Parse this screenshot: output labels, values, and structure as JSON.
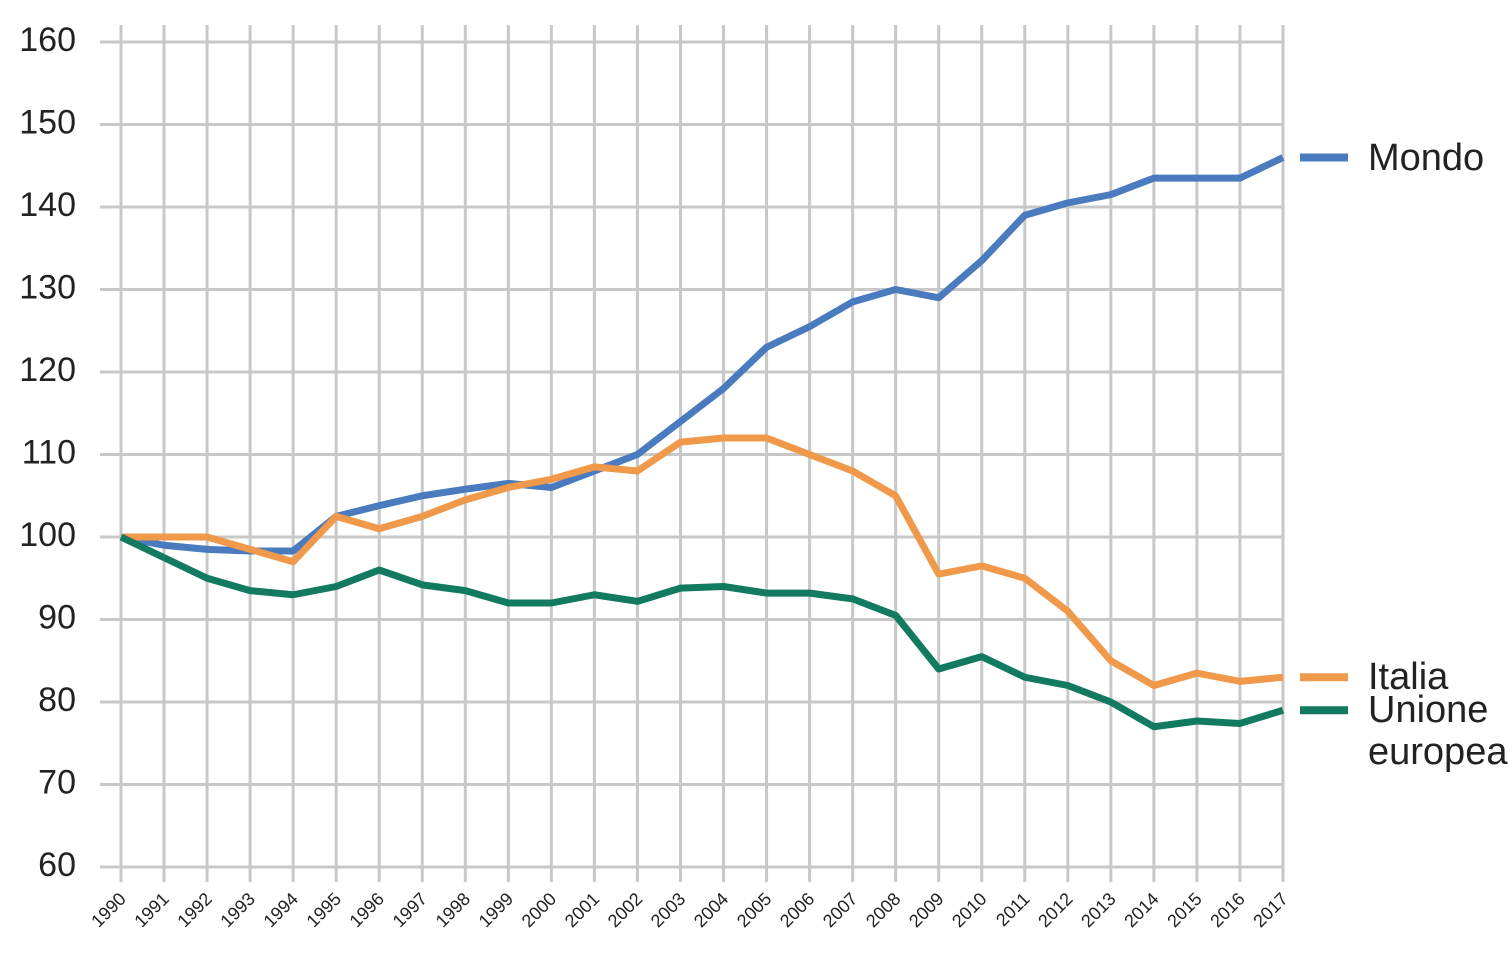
{
  "chart_data": {
    "type": "line",
    "categories": [
      "1990",
      "1991",
      "1992",
      "1993",
      "1994",
      "1995",
      "1996",
      "1997",
      "1998",
      "1999",
      "2000",
      "2001",
      "2002",
      "2003",
      "2004",
      "2005",
      "2006",
      "2007",
      "2008",
      "2009",
      "2010",
      "2011",
      "2012",
      "2013",
      "2014",
      "2015",
      "2016",
      "2017"
    ],
    "series": [
      {
        "name": "Mondo",
        "color": "#4a7bbf",
        "values": [
          100,
          99,
          98.5,
          98.3,
          98.3,
          102.5,
          103.8,
          105,
          105.8,
          106.5,
          106,
          108,
          110,
          114,
          118,
          123,
          125.5,
          128.5,
          130,
          129,
          133.5,
          139,
          140.5,
          141.5,
          143.5,
          143.5,
          143.5,
          146
        ]
      },
      {
        "name": "Italia",
        "color": "#f0994a",
        "values": [
          100,
          100,
          100,
          98.5,
          97,
          102.5,
          101,
          102.5,
          104.5,
          106,
          107,
          108.5,
          108,
          111.5,
          112,
          112,
          110,
          108,
          105,
          95.5,
          96.5,
          95,
          91,
          85,
          82,
          83.5,
          82.5,
          83
        ]
      },
      {
        "name": "Unione europea",
        "color": "#127a5f",
        "values": [
          100,
          97.5,
          95,
          93.5,
          93,
          94,
          96,
          94.2,
          93.5,
          92,
          92,
          93,
          92.2,
          93.8,
          94,
          93.2,
          93.2,
          92.5,
          90.5,
          84,
          85.5,
          83,
          82,
          80,
          77,
          77.7,
          77.4,
          79
        ]
      }
    ],
    "ylim": [
      60,
      160
    ],
    "yticks": [
      60,
      70,
      80,
      90,
      100,
      110,
      120,
      130,
      140,
      150,
      160
    ],
    "grid": true
  }
}
